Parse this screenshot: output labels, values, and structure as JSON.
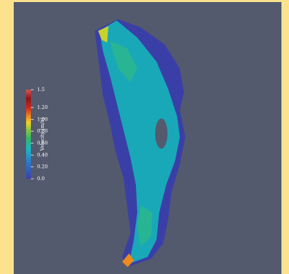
{
  "colorbar": {
    "title": "Velocity [m/s]",
    "range": [
      0,
      1.5
    ],
    "ticks": [
      {
        "value": 1.5,
        "label": "1.5"
      },
      {
        "value": 1.2,
        "label": "1.20"
      },
      {
        "value": 1.0,
        "label": "1.00"
      },
      {
        "value": 0.8,
        "label": "0.80"
      },
      {
        "value": 0.6,
        "label": "0.60"
      },
      {
        "value": 0.4,
        "label": "0.40"
      },
      {
        "value": 0.2,
        "label": "0.20"
      },
      {
        "value": 0,
        "label": "0.0"
      }
    ]
  }
}
